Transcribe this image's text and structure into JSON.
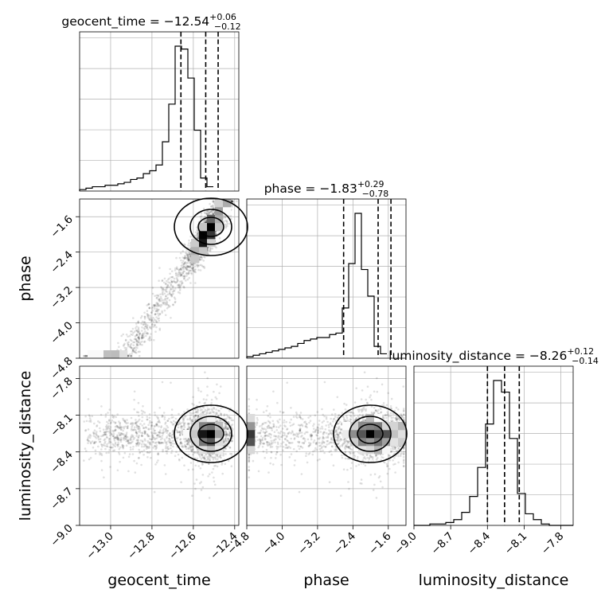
{
  "chart_data": {
    "type": "corner",
    "parameters": [
      "geocent_time",
      "phase",
      "luminosity_distance"
    ],
    "titles": [
      {
        "name": "geocent_time",
        "median": "−12.54",
        "plus": "+0.06",
        "minus": "−0.12"
      },
      {
        "name": "phase",
        "median": "−1.83",
        "plus": "+0.29",
        "minus": "−0.78"
      },
      {
        "name": "luminosity_distance",
        "median": "−8.26",
        "plus": "+0.12",
        "minus": "−0.14"
      }
    ],
    "ranges": {
      "geocent_time": [
        -13.15,
        -12.38
      ],
      "phase": [
        -4.8,
        -1.2
      ],
      "luminosity_distance": [
        -9.0,
        -7.7
      ]
    },
    "ticks": {
      "geocent_time": {
        "values": [
          -13.0,
          -12.8,
          -12.6,
          -12.4
        ],
        "labels": [
          "−13.0",
          "−12.8",
          "−12.6",
          "−12.4"
        ]
      },
      "phase": {
        "values": [
          -4.8,
          -4.0,
          -3.2,
          -2.4,
          -1.6
        ],
        "labels": [
          "−4.8",
          "−4.0",
          "−3.2",
          "−2.4",
          "−1.6"
        ]
      },
      "luminosity_distance": {
        "values": [
          -9.0,
          -8.7,
          -8.4,
          -8.1,
          -7.8
        ],
        "labels": [
          "−9.0",
          "−8.7",
          "−8.4",
          "−8.1",
          "−7.8"
        ]
      }
    },
    "quantiles": {
      "geocent_time": [
        -12.66,
        -12.54,
        -12.48
      ],
      "phase": [
        -2.61,
        -1.83,
        -1.54
      ],
      "luminosity_distance": [
        -8.4,
        -8.26,
        -8.14
      ]
    },
    "histograms": {
      "geocent_time": {
        "edges_start": -13.15,
        "bin_width": 0.0308,
        "counts": [
          1,
          2,
          3,
          3,
          4,
          4,
          5,
          6,
          8,
          9,
          12,
          14,
          18,
          34,
          60,
          100,
          98,
          78,
          42,
          9,
          3
        ]
      },
      "phase": {
        "edges_start": -4.8,
        "bin_width": 0.144,
        "counts": [
          1,
          2,
          3,
          4,
          5,
          6,
          7,
          8,
          10,
          12,
          13,
          14,
          14,
          16,
          17,
          34,
          64,
          98,
          60,
          42,
          8,
          3
        ]
      },
      "luminosity_distance": {
        "edges_start": -9.0,
        "bin_width": 0.065,
        "counts": [
          0,
          0,
          1,
          1,
          2,
          4,
          9,
          20,
          40,
          70,
          100,
          92,
          60,
          22,
          8,
          4,
          1,
          0,
          0,
          0
        ]
      }
    },
    "grid": true
  }
}
